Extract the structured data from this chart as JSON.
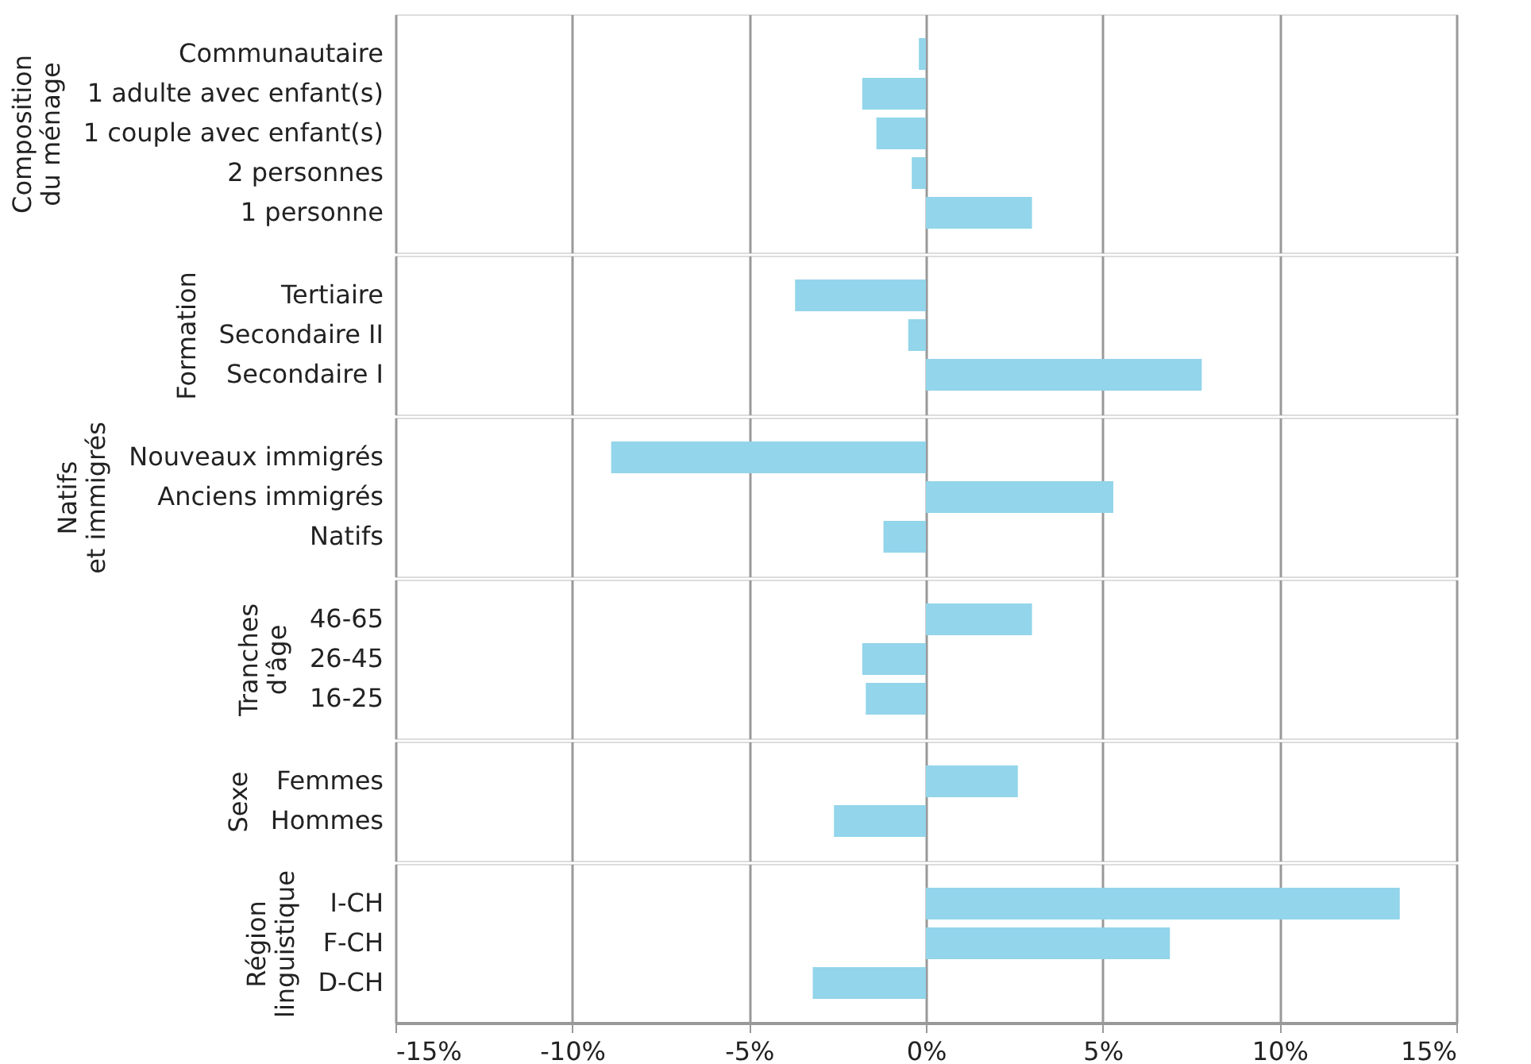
{
  "chart_data": [
    {
      "type": "bar",
      "orientation": "horizontal",
      "ylabel": "Composition du ménage",
      "categories": [
        "Communautaire",
        "1 adulte avec enfant(s)",
        "1 couple avec enfant(s)",
        "2 personnes",
        "1 personne"
      ],
      "values": [
        -0.2,
        -1.8,
        -1.4,
        -0.4,
        3.0
      ],
      "color": "#93d5ea",
      "xlim": [
        -15,
        15
      ],
      "xticks": [
        -15,
        -10,
        -5,
        0,
        5,
        10,
        15
      ],
      "grid": "x",
      "tick_labels": "y"
    },
    {
      "type": "bar",
      "orientation": "horizontal",
      "ylabel": "Formation",
      "categories": [
        "Tertiaire",
        "Secondaire II",
        "Secondaire I"
      ],
      "values": [
        -3.7,
        -0.5,
        7.8
      ],
      "color": "#93d5ea",
      "xlim": [
        -15,
        15
      ],
      "xticks": [
        -15,
        -10,
        -5,
        0,
        5,
        10,
        15
      ],
      "grid": "x",
      "tick_labels": "y"
    },
    {
      "type": "bar",
      "orientation": "horizontal",
      "ylabel": "Natifs et immigrés",
      "categories": [
        "Nouveaux immigrés",
        "Anciens immigrés",
        "Natifs"
      ],
      "values": [
        -8.9,
        5.3,
        -1.2
      ],
      "color": "#93d5ea",
      "xlim": [
        -15,
        15
      ],
      "xticks": [
        -15,
        -10,
        -5,
        0,
        5,
        10,
        15
      ],
      "grid": "x",
      "tick_labels": "y"
    },
    {
      "type": "bar",
      "orientation": "horizontal",
      "ylabel": "Tranches d'âge",
      "categories": [
        "46-65",
        "26-45",
        "16-25"
      ],
      "values": [
        3.0,
        -1.8,
        -1.7
      ],
      "color": "#93d5ea",
      "xlim": [
        -15,
        15
      ],
      "xticks": [
        -15,
        -10,
        -5,
        0,
        5,
        10,
        15
      ],
      "grid": "x",
      "tick_labels": "y"
    },
    {
      "type": "bar",
      "orientation": "horizontal",
      "ylabel": "Sexe",
      "categories": [
        "Femmes",
        "Hommes"
      ],
      "values": [
        2.6,
        -2.6
      ],
      "color": "#93d5ea",
      "xlim": [
        -15,
        15
      ],
      "xticks": [
        -15,
        -10,
        -5,
        0,
        5,
        10,
        15
      ],
      "grid": "x",
      "tick_labels": "y"
    },
    {
      "type": "bar",
      "orientation": "horizontal",
      "ylabel": "Région linguistique",
      "categories": [
        "I-CH",
        "F-CH",
        "D-CH"
      ],
      "values": [
        13.4,
        6.9,
        -3.2
      ],
      "color": "#93d5ea",
      "xlim": [
        -15,
        15
      ],
      "xticks": [
        {
          "value": -15,
          "label": "-15%"
        },
        {
          "value": -10,
          "label": "-10%"
        },
        {
          "value": -5,
          "label": "-5%"
        },
        {
          "value": 0,
          "label": "0%"
        },
        {
          "value": 5,
          "label": "5%"
        },
        {
          "value": 10,
          "label": "10%"
        },
        {
          "value": 15,
          "label": "15%"
        }
      ],
      "grid": "x"
    }
  ]
}
